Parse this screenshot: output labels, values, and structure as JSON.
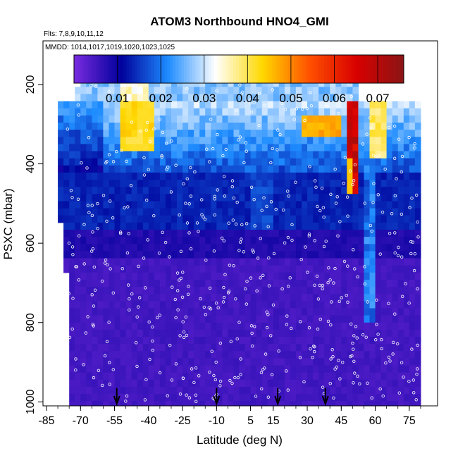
{
  "chart_data": {
    "type": "heatmap",
    "title": "ATOM3 Northbound HNO4_GMI",
    "flights_note": "Flts: 7,8,9,10,11,12",
    "dates_note": "MMDD: 1014,1017,1019,1020,1023,1025",
    "xlabel": "Latitude (deg N)",
    "ylabel": "PSXC (mbar)",
    "xlim": [
      -85,
      85
    ],
    "ylim": [
      1010,
      90
    ],
    "x_ticks": [
      -85,
      -70,
      -55,
      -40,
      -25,
      -10,
      5,
      15,
      30,
      45,
      60,
      75
    ],
    "y_ticks": [
      200,
      400,
      600,
      800,
      1000
    ],
    "colorbar": {
      "min": 0.0,
      "max": 0.076,
      "ticks": [
        0.01,
        0.02,
        0.03,
        0.04,
        0.05,
        0.06,
        0.07
      ],
      "tick_labels": [
        "0.01",
        "0.02",
        "0.03",
        "0.04",
        "0.05",
        "0.06",
        "0.07"
      ],
      "colors": [
        "#7a2be0",
        "#00009a",
        "#1e8cff",
        "#ffffff",
        "#ffd800",
        "#ff5000",
        "#d80000",
        "#8b1515"
      ]
    },
    "approx_levels": [
      {
        "pressure_range": [
          180,
          250
        ],
        "lat_range": [
          -70,
          53
        ],
        "typical_value": 0.026,
        "note": "top layer, light blue with white streaks"
      },
      {
        "pressure_range": [
          250,
          420
        ],
        "lat_range": [
          -77,
          80
        ],
        "typical_value": 0.022,
        "note": "upper troposphere, blue to cyan with white/yellow near -45 and 40-50"
      },
      {
        "pressure_range": [
          380,
          460
        ],
        "lat_range": [
          48,
          53
        ],
        "typical_value": 0.07,
        "note": "red/orange maximum"
      },
      {
        "pressure_range": [
          420,
          560
        ],
        "lat_range": [
          -77,
          80
        ],
        "typical_value": 0.011,
        "note": "dark blue"
      },
      {
        "pressure_range": [
          560,
          1010
        ],
        "lat_range": [
          -75,
          80
        ],
        "typical_value": 0.004,
        "note": "purple lower troposphere"
      }
    ],
    "arrow_markers_lat": [
      -54,
      -10,
      17,
      38
    ],
    "point_style": "white open circles (sample locations)"
  }
}
